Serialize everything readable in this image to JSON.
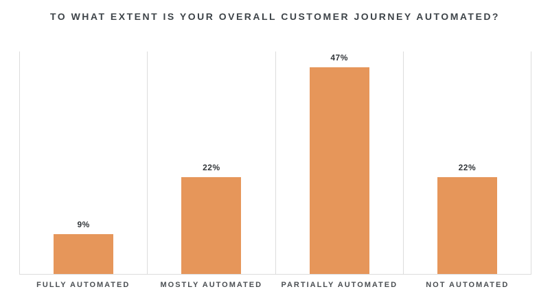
{
  "title": "TO WHAT EXTENT IS YOUR OVERALL CUSTOMER JOURNEY AUTOMATED?",
  "chart_data": {
    "type": "bar",
    "title": "TO WHAT EXTENT IS YOUR OVERALL CUSTOMER JOURNEY AUTOMATED?",
    "categories": [
      "FULLY AUTOMATED",
      "MOSTLY AUTOMATED",
      "PARTIALLY AUTOMATED",
      "NOT AUTOMATED"
    ],
    "values": [
      9,
      22,
      47,
      22
    ],
    "value_labels": [
      "9%",
      "22%",
      "47%",
      "22%"
    ],
    "xlabel": "",
    "ylabel": "",
    "ylim": [
      0,
      50
    ],
    "legend": "none",
    "grid": "vertical column separators and baseline only",
    "bar_color": "#e6965a",
    "colors": {
      "title_text": "#3e4449",
      "value_label_text": "#33373b",
      "category_label_text": "#4a4e52",
      "grid_line": "#dcdcdc",
      "background": "#ffffff"
    }
  }
}
